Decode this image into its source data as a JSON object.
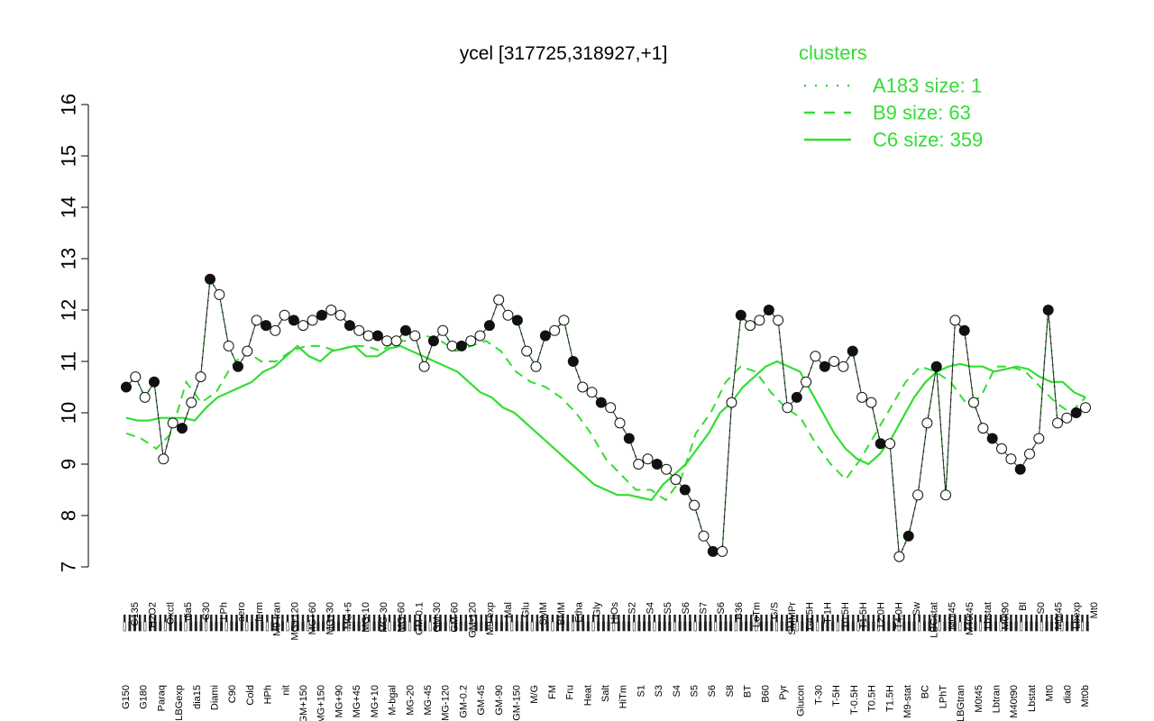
{
  "chart_data": {
    "type": "line",
    "title": "ycel [317725,318927,+1]",
    "xlabel": "",
    "ylabel": "",
    "ylim": [
      7,
      16
    ],
    "yticks": [
      7,
      8,
      9,
      10,
      11,
      12,
      13,
      14,
      15,
      16
    ],
    "grid": false,
    "legend_placement": "top-right",
    "line_color": "#33dd33",
    "x_tick_labels_a": [
      "G150",
      "G180",
      "Paraq",
      "LBGexp",
      "dia15",
      "Diami",
      "C90",
      "Cold",
      "HPh",
      "nit",
      "GM+150",
      "MG+150",
      "MG+90",
      "MG+45",
      "MG+10",
      "M-bgal",
      "MG-20",
      "MG-45",
      "MG-120",
      "GM-0.2",
      "GM-45",
      "GM-90",
      "GM-150",
      "M/G",
      "FM",
      "Fru",
      "Heat",
      "Salt",
      "HiTm",
      "S1",
      "S3",
      "S4",
      "S5",
      "S6",
      "S8",
      "BT",
      "B60",
      "Pyr",
      "Glucon",
      "T-30",
      "T-5H",
      "T-0.5H",
      "T0.5H",
      "T1.5H",
      "M9-stat",
      "BC",
      "LPhT",
      "LBGtran",
      "M0t45",
      "Lbtran",
      "M40t90",
      "Lbstat",
      "Mt0",
      "dia0",
      "Mt0b"
    ],
    "x_tick_labels_b": [
      "G135",
      "H2O2",
      "Oxctl",
      "dia5",
      "C30",
      "LPh",
      "aero",
      "ferm",
      "M9-tran",
      "MG+120",
      "MG+60",
      "MG+30",
      "MG+5",
      "MG-10",
      "MG-30",
      "MG-60",
      "GM-0.1",
      "GM-30",
      "GM-60",
      "GM-120",
      "M9-exp",
      "Mal",
      "Glu",
      "SMM",
      "BMM",
      "Etha",
      "Gly",
      "HiOs",
      "S2",
      "S4",
      "S5",
      "S6",
      "S7",
      "S6",
      "B36",
      "LoTm",
      "G/S",
      "SMMPr",
      "T-4.5H",
      "T-1H",
      "T0.5H",
      "T1.5H",
      "T2.0H",
      "T4.0H",
      "Sw",
      "LBGstat",
      "M0t45",
      "M40t45",
      "Lbstat",
      "M0t90",
      "Bl",
      "S0",
      "M0t45",
      "Lbexp",
      "Mt0"
    ],
    "legend": {
      "title": "clusters",
      "entries": [
        {
          "label": "A183 size: 1",
          "style": "dotted"
        },
        {
          "label": "B9 size: 63",
          "style": "dashed"
        },
        {
          "label": "C6 size: 359",
          "style": "solid"
        }
      ]
    },
    "series": [
      {
        "name": "C6 size: 359",
        "style": "solid",
        "values": [
          9.9,
          9.85,
          9.85,
          9.9,
          9.9,
          9.9,
          9.85,
          10.1,
          10.3,
          10.4,
          10.5,
          10.6,
          10.8,
          10.9,
          11.1,
          11.3,
          11.1,
          11.0,
          11.2,
          11.25,
          11.3,
          11.1,
          11.1,
          11.25,
          11.3,
          11.2,
          11.1,
          11.0,
          10.9,
          10.8,
          10.6,
          10.4,
          10.3,
          10.1,
          10.0,
          9.8,
          9.6,
          9.4,
          9.2,
          9.0,
          8.8,
          8.6,
          8.5,
          8.4,
          8.4,
          8.35,
          8.3,
          8.6,
          8.8,
          9.0,
          9.3,
          9.6,
          10.0,
          10.2,
          10.5,
          10.7,
          10.9,
          11.0,
          10.9,
          10.8,
          10.4,
          10.0,
          9.6,
          9.3,
          9.1,
          9.0,
          9.2,
          9.5,
          9.9,
          10.3,
          10.6,
          10.8,
          10.9,
          10.95,
          10.9,
          10.9,
          10.8,
          10.85,
          10.9,
          10.85,
          10.7,
          10.6,
          10.6,
          10.4,
          10.3
        ]
      },
      {
        "name": "B9 size: 63",
        "style": "dashed",
        "values": [
          9.6,
          9.5,
          9.3,
          9.6,
          10.6,
          10.2,
          10.4,
          10.9,
          11.2,
          11.0,
          11.0,
          11.2,
          11.3,
          11.3,
          11.2,
          11.3,
          11.3,
          11.2,
          11.4,
          11.4,
          11.5,
          11.4,
          11.2,
          11.3,
          11.4,
          11.2,
          10.8,
          10.6,
          10.5,
          10.3,
          10.0,
          9.6,
          9.1,
          8.8,
          8.5,
          8.5,
          8.3,
          8.7,
          9.6,
          10.0,
          10.6,
          10.9,
          10.8,
          10.4,
          10.1,
          9.9,
          9.4,
          9.0,
          8.7,
          9.1,
          9.6,
          10.1,
          10.6,
          10.9,
          10.8,
          10.6,
          10.2,
          10.3,
          10.9,
          10.9,
          10.8,
          10.5,
          10.2,
          10.0,
          10.3
        ]
      },
      {
        "name": "A183 size: 1",
        "style": "dotted",
        "values": [
          10.5,
          10.7,
          10.3,
          10.6,
          9.1,
          9.8,
          9.7,
          10.2,
          10.7,
          12.6,
          12.3,
          11.3,
          10.9,
          11.2,
          11.8,
          11.7,
          11.6,
          11.9,
          11.8,
          11.7,
          11.8,
          11.9,
          12.0,
          11.9,
          11.7,
          11.6,
          11.5,
          11.5,
          11.4,
          11.4,
          11.6,
          11.5,
          10.9,
          11.4,
          11.6,
          11.3,
          11.3,
          11.4,
          11.5,
          11.7,
          12.2,
          11.9,
          11.8,
          11.2,
          10.9,
          11.5,
          11.6,
          11.8,
          11.0,
          10.5,
          10.4,
          10.2,
          10.1,
          9.8,
          9.5,
          9.0,
          9.1,
          9.0,
          8.9,
          8.7,
          8.5,
          8.2,
          7.6,
          7.3,
          7.3,
          10.2,
          11.9,
          11.7,
          11.8,
          12.0,
          11.8,
          10.1,
          10.3,
          10.6,
          11.1,
          10.9,
          11.0,
          10.9,
          11.2,
          10.3,
          10.2,
          9.4,
          9.4,
          7.2,
          7.6,
          8.4,
          9.8,
          10.9,
          8.4,
          11.8,
          11.6,
          10.2,
          9.7,
          9.5,
          9.3,
          9.1,
          8.9,
          9.2,
          9.5,
          12.0,
          9.8,
          9.9,
          10.0,
          10.1
        ]
      }
    ]
  }
}
